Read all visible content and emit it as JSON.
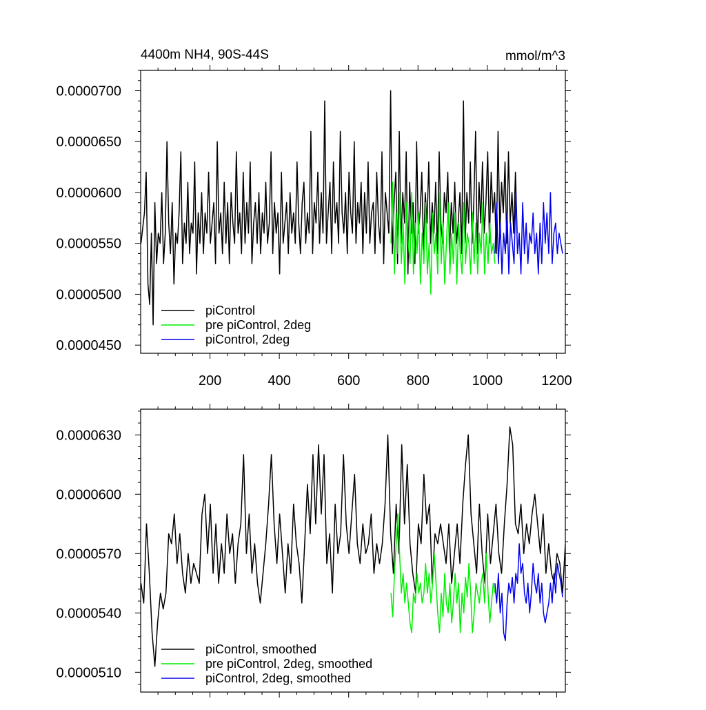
{
  "chart_data": [
    {
      "type": "line",
      "title_left": "4400m NH4, 90S-44S",
      "title_right": "mmol/m^3",
      "xlim": [
        0,
        1225
      ],
      "ylim": [
        4.42e-05,
        7.2e-05
      ],
      "x_ticks": [
        200,
        400,
        600,
        800,
        1000,
        1200
      ],
      "x_tick_labels": [
        "200",
        "400",
        "600",
        "800",
        "1000",
        "1200"
      ],
      "y_ticks": [
        4.5e-05,
        5e-05,
        5.5e-05,
        6e-05,
        6.5e-05,
        7e-05
      ],
      "y_tick_labels": [
        "0.0000450",
        "0.0000500",
        "0.0000550",
        "0.0000600",
        "0.0000650",
        "0.0000700"
      ],
      "legend": [
        "piControl",
        "pre piControl, 2deg",
        "piControl, 2deg"
      ],
      "colors": [
        "#000000",
        "#00ee00",
        "#0000ee"
      ],
      "series": [
        {
          "name": "piControl",
          "x_start": 1,
          "x_step": 5,
          "values": [
            5.5e-05,
            5.65e-05,
            5.8e-05,
            6.2e-05,
            5.1e-05,
            4.9e-05,
            5.6e-05,
            4.7e-05,
            5.9e-05,
            5.3e-05,
            5.6e-05,
            5.5e-05,
            6e-05,
            5.3e-05,
            5.6e-05,
            6.5e-05,
            5.7e-05,
            5.4e-05,
            5.9e-05,
            5.1e-05,
            5.6e-05,
            5.5e-05,
            5.8e-05,
            6.4e-05,
            5.3e-05,
            5.7e-05,
            5.5e-05,
            6.1e-05,
            5.4e-05,
            5.7e-05,
            5.6e-05,
            6.3e-05,
            5.2e-05,
            5.8e-05,
            5.5e-05,
            6e-05,
            5.4e-05,
            5.8e-05,
            5.6e-05,
            6.2e-05,
            5.5e-05,
            5.7e-05,
            5.9e-05,
            5.3e-05,
            6.5e-05,
            5.6e-05,
            5.8e-05,
            5.4e-05,
            6.1e-05,
            5.5e-05,
            5.9e-05,
            5.3e-05,
            6e-05,
            5.7e-05,
            5.5e-05,
            6.4e-05,
            5.6e-05,
            5.8e-05,
            5.4e-05,
            6.2e-05,
            5.5e-05,
            5.9e-05,
            5.6e-05,
            6.3e-05,
            5.3e-05,
            5.7e-05,
            5.9e-05,
            5.5e-05,
            6e-05,
            5.4e-05,
            5.8e-05,
            5.6e-05,
            6.1e-05,
            5.5e-05,
            5.7e-05,
            6.4e-05,
            5.4e-05,
            5.9e-05,
            5.6e-05,
            5.8e-05,
            5.2e-05,
            6.2e-05,
            5.5e-05,
            5.7e-05,
            5.9e-05,
            5.4e-05,
            6e-05,
            5.6e-05,
            5.8e-05,
            5.5e-05,
            6.3e-05,
            5.7e-05,
            5.4e-05,
            5.9e-05,
            6.1e-05,
            5.5e-05,
            5.8e-05,
            5.6e-05,
            6.6e-05,
            5.4e-05,
            5.9e-05,
            5.7e-05,
            6.2e-05,
            5.5e-05,
            6e-05,
            5.6e-05,
            6.9e-05,
            5.5e-05,
            5.8e-05,
            6.1e-05,
            5.4e-05,
            6.3e-05,
            5.7e-05,
            5.9e-05,
            5.5e-05,
            6.6e-05,
            5.8e-05,
            5.6e-05,
            6e-05,
            5.4e-05,
            6.2e-05,
            5.8e-05,
            5.6e-05,
            6.5e-05,
            5.5e-05,
            5.9e-05,
            5.7e-05,
            6.1e-05,
            5.4e-05,
            6e-05,
            5.6e-05,
            6.3e-05,
            5.5e-05,
            5.8e-05,
            5.9e-05,
            5.4e-05,
            6.2e-05,
            5.7e-05,
            5.5e-05,
            6.4e-05,
            5.3e-05,
            6e-05,
            5.8e-05,
            5.6e-05,
            7e-05,
            5.4e-05,
            5.9e-05,
            6.2e-05,
            5.3e-05,
            6.6e-05,
            5.5e-05,
            6e-05,
            5.7e-05,
            6.4e-05,
            5.2e-05,
            6.1e-05,
            5.6e-05,
            5.9e-05,
            5.3e-05,
            6.5e-05,
            5.6e-05,
            5.8e-05,
            6.2e-05,
            5.4e-05,
            6e-05,
            5.7e-05,
            6.3e-05,
            5.5e-05,
            5.9e-05,
            5.6e-05,
            6.1e-05,
            5.4e-05,
            6.4e-05,
            5.7e-05,
            5.5e-05,
            6e-05,
            5.8e-05,
            6.2e-05,
            5.4e-05,
            5.9e-05,
            5.6e-05,
            6.1e-05,
            5.5e-05,
            5.7e-05,
            6e-05,
            5.4e-05,
            6.9e-05,
            5.5e-05,
            6e-05,
            5.7e-05,
            6.3e-05,
            5.5e-05,
            5.9e-05,
            6.6e-05,
            5.4e-05,
            6.1e-05,
            5.7e-05,
            6.3e-05,
            5.6e-05,
            5.9e-05,
            6.4e-05,
            5.5e-05,
            6.2e-05,
            5.8e-05,
            6e-05,
            5.4e-05,
            6.6e-05,
            5.6e-05,
            6.1e-05,
            5.8e-05,
            6.3e-05,
            5.5e-05,
            6.4e-05,
            5.7e-05,
            6e-05,
            5.6e-05,
            6.2e-05,
            5.6e-05
          ]
        },
        {
          "name": "pre piControl, 2deg",
          "x_start": 722,
          "x_step": 5,
          "values": [
            5.5e-05,
            6.1e-05,
            5.2e-05,
            5.8e-05,
            5.4e-05,
            6e-05,
            5.3e-05,
            5.7e-05,
            5.1e-05,
            5.9e-05,
            5.5e-05,
            5.3e-05,
            6e-05,
            5.2e-05,
            5.7e-05,
            5.4e-05,
            5.8e-05,
            5.1e-05,
            5.6e-05,
            5.3e-05,
            5.9e-05,
            5.2e-05,
            5.5e-05,
            5e-05,
            5.8e-05,
            5.4e-05,
            5.6e-05,
            5.2e-05,
            6e-05,
            5.3e-05,
            5.7e-05,
            5.1e-05,
            5.5e-05,
            5.9e-05,
            5.2e-05,
            5.6e-05,
            5.3e-05,
            5.8e-05,
            5.1e-05,
            5.7e-05,
            5.4e-05,
            5.2e-05,
            5.9e-05,
            5.3e-05,
            5.6e-05,
            5.5e-05,
            5.2e-05,
            5.8e-05,
            5.3e-05,
            5.7e-05,
            5.2e-05,
            5.6e-05,
            5.4e-05,
            5.9e-05,
            5.2e-05,
            5.6e-05,
            5.3e-05,
            5.7e-05,
            5.4e-05,
            5.5e-05,
            5.3e-05
          ]
        },
        {
          "name": "piControl, 2deg",
          "x_start": 1022,
          "x_step": 5,
          "values": [
            5.4e-05,
            5.9e-05,
            5.3e-05,
            5.7e-05,
            5.2e-05,
            5.6e-05,
            5.4e-05,
            5.8e-05,
            5.2e-05,
            5.7e-05,
            5.5e-05,
            5.3e-05,
            6e-05,
            5.4e-05,
            5.6e-05,
            5.2e-05,
            5.9e-05,
            5.4e-05,
            5.7e-05,
            5.3e-05,
            5.6e-05,
            5.5e-05,
            5.8e-05,
            5.4e-05,
            5.6e-05,
            5.2e-05,
            5.7e-05,
            5.3e-05,
            5.9e-05,
            5.5e-05,
            5.8e-05,
            5.4e-05,
            6e-05,
            5.3e-05,
            5.6e-05,
            5.7e-05,
            5.4e-05,
            5.6e-05,
            5.5e-05,
            5.4e-05
          ]
        }
      ]
    },
    {
      "type": "line",
      "xlim": [
        0,
        1225
      ],
      "ylim": [
        5e-05,
        6.43e-05
      ],
      "y_ticks": [
        5.1e-05,
        5.4e-05,
        5.7e-05,
        6e-05,
        6.3e-05
      ],
      "y_tick_labels": [
        "0.0000510",
        "0.0000540",
        "0.0000570",
        "0.0000600",
        "0.0000630"
      ],
      "legend": [
        "piControl, smoothed",
        "pre piControl, 2deg, smoothed",
        "piControl, 2deg, smoothed"
      ],
      "colors": [
        "#000000",
        "#00ee00",
        "#0000ee"
      ],
      "series": [
        {
          "name": "piControl, smoothed",
          "x_start": 1,
          "x_step": 8,
          "values": [
            5.55e-05,
            5.45e-05,
            5.85e-05,
            5.6e-05,
            5.3e-05,
            5.13e-05,
            5.35e-05,
            5.5e-05,
            5.42e-05,
            5.5e-05,
            5.8e-05,
            5.75e-05,
            5.9e-05,
            5.65e-05,
            5.8e-05,
            5.6e-05,
            5.5e-05,
            5.7e-05,
            5.55e-05,
            5.65e-05,
            5.6e-05,
            5.55e-05,
            5.9e-05,
            6e-05,
            5.7e-05,
            5.95e-05,
            5.6e-05,
            5.85e-05,
            5.55e-05,
            5.75e-05,
            5.6e-05,
            5.9e-05,
            5.7e-05,
            5.8e-05,
            5.55e-05,
            5.75e-05,
            5.85e-05,
            6.2e-05,
            5.7e-05,
            5.9e-05,
            5.6e-05,
            5.75e-05,
            5.55e-05,
            5.45e-05,
            5.6e-05,
            5.75e-05,
            5.95e-05,
            6.2e-05,
            5.85e-05,
            5.65e-05,
            5.9e-05,
            5.7e-05,
            5.5e-05,
            5.75e-05,
            5.6e-05,
            5.95e-05,
            5.75e-05,
            5.65e-05,
            5.45e-05,
            5.75e-05,
            6.05e-05,
            5.8e-05,
            6.2e-05,
            5.85e-05,
            6.25e-05,
            5.9e-05,
            6.2e-05,
            5.65e-05,
            5.8e-05,
            5.5e-05,
            5.95e-05,
            5.7e-05,
            5.8e-05,
            6.2e-05,
            5.85e-05,
            5.7e-05,
            5.9e-05,
            6.1e-05,
            5.75e-05,
            5.65e-05,
            5.85e-05,
            5.7e-05,
            5.75e-05,
            5.9e-05,
            5.6e-05,
            5.75e-05,
            5.65e-05,
            5.75e-05,
            5.95e-05,
            6.3e-05,
            5.8e-05,
            5.6e-05,
            5.95e-05,
            5.7e-05,
            6.25e-05,
            5.85e-05,
            6.15e-05,
            5.75e-05,
            5.6e-05,
            5.5e-05,
            5.85e-05,
            5.75e-05,
            6.1e-05,
            5.85e-05,
            5.95e-05,
            5.55e-05,
            5.8e-05,
            5.75e-05,
            5.85e-05,
            5.75e-05,
            5.65e-05,
            5.85e-05,
            5.55e-05,
            5.7e-05,
            5.85e-05,
            5.65e-05,
            5.95e-05,
            6.15e-05,
            6.3e-05,
            5.9e-05,
            5.75e-05,
            5.6e-05,
            5.95e-05,
            5.7e-05,
            5.55e-05,
            5.9e-05,
            5.65e-05,
            5.8e-05,
            5.95e-05,
            5.7e-05,
            5.6e-05,
            5.85e-05,
            6.05e-05,
            6.34e-05,
            6.25e-05,
            5.85e-05,
            5.8e-05,
            5.95e-05,
            5.7e-05,
            5.85e-05,
            5.75e-05,
            5.9e-05,
            6e-05,
            5.85e-05,
            5.7e-05,
            5.9e-05,
            5.6e-05,
            5.75e-05,
            5.6e-05,
            5.55e-05,
            5.7e-05,
            5.65e-05,
            5.5e-05,
            5.75e-05
          ]
        },
        {
          "name": "pre piControl, 2deg, smoothed",
          "x_start": 722,
          "x_step": 5,
          "values": [
            5.5e-05,
            5.38e-05,
            5.6e-05,
            5.75e-05,
            5.9e-05,
            5.7e-05,
            5.5e-05,
            5.6e-05,
            5.45e-05,
            5.55e-05,
            5.45e-05,
            5.35e-05,
            5.3e-05,
            5.5e-05,
            5.45e-05,
            5.6e-05,
            5.5e-05,
            5.55e-05,
            5.45e-05,
            5.5e-05,
            5.65e-05,
            5.5e-05,
            5.6e-05,
            5.45e-05,
            5.55e-05,
            5.7e-05,
            5.55e-05,
            5.4e-05,
            5.3e-05,
            5.5e-05,
            5.38e-05,
            5.6e-05,
            5.45e-05,
            5.4e-05,
            5.55e-05,
            5.35e-05,
            5.45e-05,
            5.6e-05,
            5.45e-05,
            5.55e-05,
            5.3e-05,
            5.5e-05,
            5.4e-05,
            5.58e-05,
            5.48e-05,
            5.65e-05,
            5.5e-05,
            5.3e-05,
            5.4e-05,
            5.55e-05,
            5.5e-05,
            5.45e-05,
            5.55e-05,
            5.6e-05,
            5.45e-05,
            5.7e-05,
            5.5e-05,
            5.35e-05,
            5.45e-05,
            5.55e-05,
            5.5e-05
          ]
        },
        {
          "name": "piControl, 2deg, smoothed",
          "x_start": 1022,
          "x_step": 5,
          "values": [
            5.55e-05,
            5.45e-05,
            5.6e-05,
            5.4e-05,
            5.5e-05,
            5.3e-05,
            5.26e-05,
            5.45e-05,
            5.55e-05,
            5.5e-05,
            5.58e-05,
            5.45e-05,
            5.6e-05,
            5.55e-05,
            5.75e-05,
            5.6e-05,
            5.65e-05,
            5.5e-05,
            5.45e-05,
            5.55e-05,
            5.4e-05,
            5.5e-05,
            5.65e-05,
            5.55e-05,
            5.5e-05,
            5.6e-05,
            5.45e-05,
            5.55e-05,
            5.4e-05,
            5.35e-05,
            5.4e-05,
            5.45e-05,
            5.55e-05,
            5.45e-05,
            5.6e-05,
            5.5e-05,
            5.65e-05,
            5.6e-05,
            5.55e-05,
            5.48e-05
          ]
        }
      ]
    }
  ]
}
